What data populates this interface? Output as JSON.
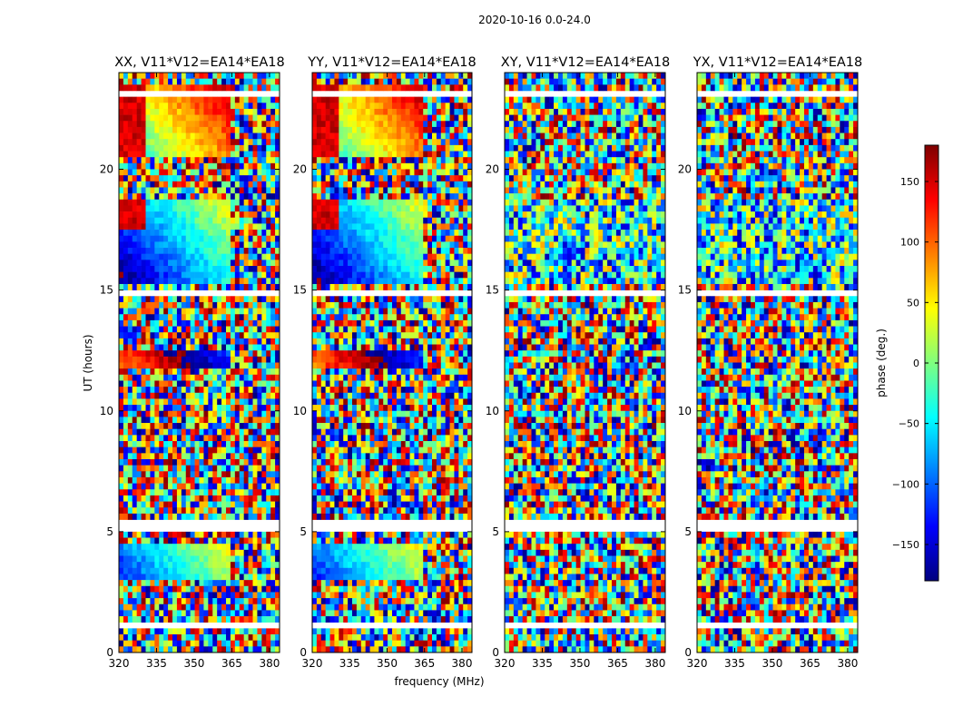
{
  "figure": {
    "suptitle": "2020-10-16 0.0-24.0"
  },
  "colormap": {
    "name": "jet",
    "stops": [
      "#00007f",
      "#0000ff",
      "#007fff",
      "#00ffff",
      "#7fff7f",
      "#ffff00",
      "#ff7f00",
      "#ff0000",
      "#7f0000"
    ],
    "gap_color": "#ffffff"
  },
  "chart_data": {
    "type": "heatmap",
    "value_range": [
      -180,
      180
    ],
    "xlim": [
      320,
      384
    ],
    "ylim": [
      0,
      24
    ],
    "x_ticks": [
      320,
      335,
      350,
      365,
      380
    ],
    "y_ticks": [
      0,
      5,
      10,
      15,
      20
    ],
    "xlabel": "frequency (MHz)",
    "ylabel": "UT (hours)",
    "colorbar": {
      "label": "phase (deg.)",
      "ticks": [
        -150,
        -100,
        -50,
        0,
        50,
        100,
        150
      ],
      "range": [
        -180,
        180
      ]
    },
    "panels": [
      {
        "title": "XX, V11*V12=EA14*EA18",
        "pol": "XX"
      },
      {
        "title": "YY, V11*V12=EA14*EA18",
        "pol": "YY"
      },
      {
        "title": "XY, V11*V12=EA14*EA18",
        "pol": "XY"
      },
      {
        "title": "YX, V11*V12=EA14*EA18",
        "pol": "YX"
      }
    ]
  }
}
